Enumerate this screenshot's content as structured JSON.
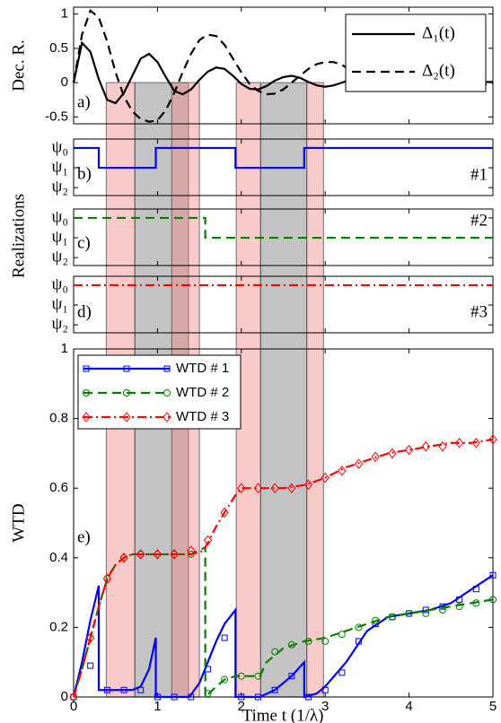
{
  "chart_data": {
    "type": "line",
    "xlabel": "Time t (1/λ)",
    "xlim": [
      0,
      5
    ],
    "xticks": [
      0,
      1,
      2,
      3,
      4,
      5
    ],
    "shared_ylabel": "Realizations",
    "bands": [
      {
        "start": 0.39,
        "end": 0.73,
        "color": "#f08080"
      },
      {
        "start": 0.73,
        "end": 1.37,
        "color": "#707070"
      },
      {
        "start": 1.17,
        "end": 1.5,
        "color": "#f08080"
      },
      {
        "start": 1.94,
        "end": 2.23,
        "color": "#f08080"
      },
      {
        "start": 2.23,
        "end": 2.78,
        "color": "#707070"
      },
      {
        "start": 2.78,
        "end": 2.98,
        "color": "#f08080"
      }
    ],
    "panels": [
      {
        "type": "line",
        "label": "a)",
        "ylabel": "Dec. R.",
        "ylim": [
          -0.6,
          1.1
        ],
        "yticks": [
          -0.5,
          0,
          0.5,
          1
        ],
        "x": [
          0,
          0.1,
          0.2,
          0.3,
          0.4,
          0.5,
          0.6,
          0.7,
          0.8,
          0.9,
          1,
          1.1,
          1.2,
          1.3,
          1.4,
          1.5,
          1.6,
          1.7,
          1.8,
          1.9,
          2,
          2.1,
          2.2,
          2.3,
          2.4,
          2.5,
          2.6,
          2.7,
          2.8,
          2.9,
          3,
          3.1,
          3.2,
          3.3,
          3.4,
          3.5,
          3.6,
          3.7,
          3.8,
          3.9,
          4,
          4.1,
          4.2,
          4.3,
          4.4,
          4.5,
          4.6,
          4.7,
          4.8,
          4.9,
          5
        ],
        "series": [
          {
            "name": "Δ₁(t)",
            "color": "#000000",
            "dash": "solid",
            "values": [
              0,
              0.58,
              0.45,
              0.05,
              -0.25,
              -0.3,
              -0.15,
              0.1,
              0.35,
              0.42,
              0.3,
              0.08,
              -0.12,
              -0.17,
              -0.1,
              0.04,
              0.16,
              0.22,
              0.2,
              0.1,
              -0.02,
              -0.09,
              -0.1,
              -0.05,
              0.03,
              0.08,
              0.1,
              0.07,
              0.01,
              -0.04,
              -0.06,
              -0.04,
              0,
              0.04,
              0.05,
              0.04,
              0.01,
              -0.02,
              -0.03,
              -0.02,
              0,
              0.02,
              0.03,
              0.02,
              0,
              -0.01,
              -0.02,
              -0.01,
              0,
              0.01,
              0.01
            ]
          },
          {
            "name": "Δ₂(t)",
            "color": "#000000",
            "dash": "dashed",
            "values": [
              0,
              0.7,
              1.05,
              0.95,
              0.6,
              0.15,
              -0.2,
              -0.42,
              -0.53,
              -0.57,
              -0.55,
              -0.4,
              -0.15,
              0.15,
              0.42,
              0.62,
              0.7,
              0.68,
              0.55,
              0.35,
              0.15,
              -0.02,
              -0.12,
              -0.17,
              -0.16,
              -0.1,
              0,
              0.1,
              0.2,
              0.27,
              0.3,
              0.3,
              0.26,
              0.18,
              0.1,
              0.02,
              -0.04,
              -0.07,
              -0.07,
              -0.04,
              0,
              0.04,
              0.07,
              0.08,
              0.06,
              0.03,
              0,
              -0.03,
              -0.04,
              -0.03,
              -0.01
            ]
          }
        ]
      },
      {
        "type": "step",
        "label": "b)",
        "annotation": "#1",
        "ylim": [
          2.4,
          -0.45
        ],
        "yticks": [
          {
            "value": 0,
            "label": "ψ₀"
          },
          {
            "value": 1,
            "label": "ψ₁"
          },
          {
            "value": 2,
            "label": "ψ₂"
          }
        ],
        "series": [
          {
            "color": "#0000ff",
            "dash": "solid",
            "x": [
              0,
              0.3,
              0.3,
              0.98,
              0.98,
              1.93,
              1.93,
              2.75,
              2.75,
              5
            ],
            "values": [
              0,
              0,
              1,
              1,
              0,
              0,
              1,
              1,
              0,
              0
            ]
          }
        ]
      },
      {
        "type": "step",
        "label": "c)",
        "annotation": "#2",
        "ylim": [
          2.4,
          -0.45
        ],
        "yticks": [
          {
            "value": 0,
            "label": "ψ₀"
          },
          {
            "value": 1,
            "label": "ψ₁"
          },
          {
            "value": 2,
            "label": "ψ₂"
          }
        ],
        "series": [
          {
            "color": "#007f00",
            "dash": "dashed",
            "x": [
              0,
              1.57,
              1.57,
              5
            ],
            "values": [
              0,
              0,
              1,
              1
            ]
          }
        ]
      },
      {
        "type": "step",
        "label": "d)",
        "annotation": "#3",
        "ylim": [
          2.4,
          -0.45
        ],
        "yticks": [
          {
            "value": 0,
            "label": "ψ₀"
          },
          {
            "value": 1,
            "label": "ψ₁"
          },
          {
            "value": 2,
            "label": "ψ₂"
          }
        ],
        "series": [
          {
            "color": "#ff0000",
            "dash": "dashdot",
            "x": [
              0,
              5
            ],
            "values": [
              0,
              0
            ]
          }
        ]
      },
      {
        "type": "line",
        "label": "e)",
        "ylabel": "WTD",
        "ylim": [
          0,
          1
        ],
        "yticks": [
          0,
          0.2,
          0.4,
          0.6,
          0.8,
          1
        ],
        "marker_x": [
          0,
          0.2,
          0.4,
          0.6,
          0.8,
          1,
          1.2,
          1.4,
          1.6,
          1.8,
          2,
          2.2,
          2.4,
          2.6,
          2.8,
          3,
          3.2,
          3.4,
          3.6,
          3.8,
          4,
          4.2,
          4.4,
          4.6,
          4.8,
          5
        ],
        "series": [
          {
            "name": "WTD # 1",
            "color": "#0000ff",
            "dash": "solid",
            "marker": "square",
            "x": [
              0,
              0.1,
              0.2,
              0.3,
              0.3,
              0.5,
              0.7,
              0.8,
              0.9,
              0.98,
              0.98,
              1.2,
              1.38,
              1.5,
              1.6,
              1.7,
              1.8,
              1.93,
              1.93,
              2.1,
              2.22,
              2.4,
              2.6,
              2.75,
              2.75,
              2.9,
              3,
              3.25,
              3.5,
              3.75,
              4,
              4.25,
              4.5,
              4.75,
              5
            ],
            "values": [
              0,
              0.1,
              0.22,
              0.32,
              0.02,
              0.02,
              0.02,
              0.03,
              0.08,
              0.17,
              0,
              0,
              0,
              0.04,
              0.1,
              0.16,
              0.21,
              0.25,
              0,
              0,
              0,
              0.02,
              0.06,
              0.1,
              0,
              0.01,
              0.03,
              0.1,
              0.19,
              0.23,
              0.24,
              0.25,
              0.27,
              0.31,
              0.35
            ],
            "marker_values": [
              0,
              0.09,
              0.02,
              0.02,
              0.02,
              0,
              0,
              0,
              0.08,
              0.17,
              0,
              0,
              0.02,
              0.06,
              0,
              0.02,
              0.07,
              0.16,
              0.21,
              0.23,
              0.24,
              0.25,
              0.26,
              0.28,
              0.31,
              0.35
            ]
          },
          {
            "name": "WTD # 2",
            "color": "#007f00",
            "dash": "dashed",
            "marker": "circle",
            "x": [
              0,
              0.1,
              0.2,
              0.3,
              0.4,
              0.5,
              0.6,
              0.7,
              0.8,
              1,
              1.2,
              1.4,
              1.57,
              1.57,
              1.7,
              1.8,
              1.93,
              2.1,
              2.22,
              2.3,
              2.5,
              2.75,
              3,
              3.25,
              3.5,
              3.75,
              4,
              4.25,
              4.5,
              4.75,
              5
            ],
            "values": [
              0,
              0.08,
              0.17,
              0.26,
              0.34,
              0.38,
              0.4,
              0.41,
              0.41,
              0.41,
              0.41,
              0.41,
              0.43,
              0,
              0.03,
              0.05,
              0.06,
              0.06,
              0.06,
              0.1,
              0.14,
              0.16,
              0.17,
              0.19,
              0.21,
              0.23,
              0.24,
              0.25,
              0.26,
              0.27,
              0.28
            ],
            "marker_values": [
              0,
              0.17,
              0.34,
              0.4,
              0.41,
              0.41,
              0.41,
              0.41,
              0.01,
              0.05,
              0.06,
              0.06,
              0.13,
              0.15,
              0.16,
              0.16,
              0.18,
              0.2,
              0.22,
              0.23,
              0.24,
              0.24,
              0.25,
              0.26,
              0.27,
              0.28
            ]
          },
          {
            "name": "WTD # 3",
            "color": "#ff0000",
            "dash": "dashdot",
            "marker": "diamond",
            "x": [
              0,
              0.1,
              0.2,
              0.3,
              0.4,
              0.5,
              0.6,
              0.7,
              0.8,
              1,
              1.2,
              1.4,
              1.55,
              1.7,
              1.8,
              1.93,
              2,
              2.2,
              2.5,
              2.78,
              3,
              3.25,
              3.5,
              3.75,
              4,
              4.25,
              4.5,
              4.75,
              5
            ],
            "values": [
              0,
              0.08,
              0.17,
              0.26,
              0.34,
              0.38,
              0.4,
              0.41,
              0.41,
              0.41,
              0.41,
              0.41,
              0.42,
              0.49,
              0.53,
              0.58,
              0.6,
              0.6,
              0.6,
              0.61,
              0.63,
              0.66,
              0.68,
              0.7,
              0.71,
              0.72,
              0.73,
              0.73,
              0.74
            ],
            "marker_values": [
              0,
              0.17,
              0.34,
              0.4,
              0.41,
              0.41,
              0.41,
              0.42,
              0.45,
              0.53,
              0.6,
              0.6,
              0.6,
              0.6,
              0.61,
              0.63,
              0.65,
              0.67,
              0.69,
              0.7,
              0.71,
              0.72,
              0.72,
              0.73,
              0.73,
              0.74
            ]
          }
        ]
      }
    ]
  }
}
